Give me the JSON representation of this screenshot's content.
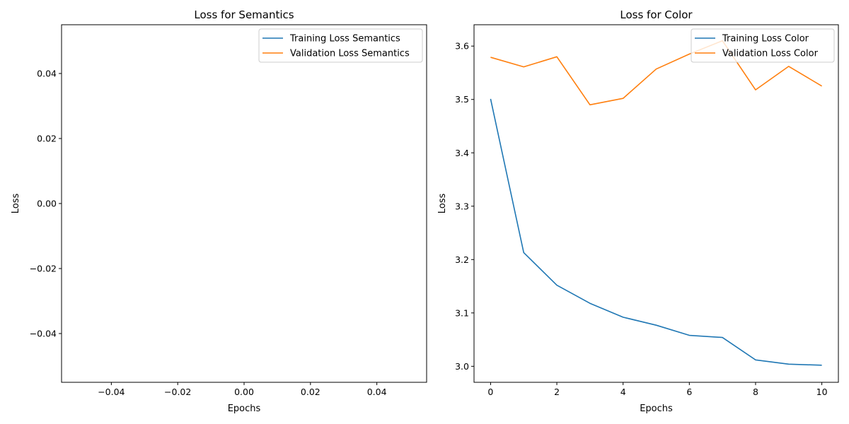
{
  "chart_data": [
    {
      "type": "line",
      "title": "Loss for Semantics",
      "xlabel": "Epochs",
      "ylabel": "Loss",
      "xlim": [
        -0.055,
        0.055
      ],
      "ylim": [
        -0.055,
        0.055
      ],
      "x_ticks": [
        -0.04,
        -0.02,
        0.0,
        0.02,
        0.04
      ],
      "x_tick_labels": [
        "−0.04",
        "−0.02",
        "0.00",
        "0.02",
        "0.04"
      ],
      "y_ticks": [
        -0.04,
        -0.02,
        0.0,
        0.02,
        0.04
      ],
      "y_tick_labels": [
        "−0.04",
        "−0.02",
        "0.00",
        "0.02",
        "0.04"
      ],
      "grid": false,
      "legend_position": "top-right",
      "series": [
        {
          "name": "Training Loss Semantics",
          "color": "#1f77b4",
          "x": [],
          "values": []
        },
        {
          "name": "Validation Loss Semantics",
          "color": "#ff7f0e",
          "x": [],
          "values": []
        }
      ]
    },
    {
      "type": "line",
      "title": "Loss for Color",
      "xlabel": "Epochs",
      "ylabel": "Loss",
      "xlim": [
        -0.5,
        10.5
      ],
      "ylim": [
        2.97,
        3.64
      ],
      "x_ticks": [
        0,
        2,
        4,
        6,
        8,
        10
      ],
      "x_tick_labels": [
        "0",
        "2",
        "4",
        "6",
        "8",
        "10"
      ],
      "y_ticks": [
        3.0,
        3.1,
        3.2,
        3.3,
        3.4,
        3.5,
        3.6
      ],
      "y_tick_labels": [
        "3.0",
        "3.1",
        "3.2",
        "3.3",
        "3.4",
        "3.5",
        "3.6"
      ],
      "grid": false,
      "legend_position": "top-right",
      "series": [
        {
          "name": "Training Loss Color",
          "color": "#1f77b4",
          "x": [
            0,
            1,
            2,
            3,
            4,
            5,
            6,
            7,
            8,
            9,
            10
          ],
          "values": [
            3.501,
            3.213,
            3.152,
            3.118,
            3.092,
            3.077,
            3.058,
            3.054,
            3.012,
            3.004,
            3.002
          ]
        },
        {
          "name": "Validation Loss Color",
          "color": "#ff7f0e",
          "x": [
            0,
            1,
            2,
            3,
            4,
            5,
            6,
            7,
            8,
            9,
            10
          ],
          "values": [
            3.579,
            3.561,
            3.58,
            3.49,
            3.502,
            3.557,
            3.585,
            3.61,
            3.518,
            3.562,
            3.525
          ]
        }
      ]
    }
  ]
}
